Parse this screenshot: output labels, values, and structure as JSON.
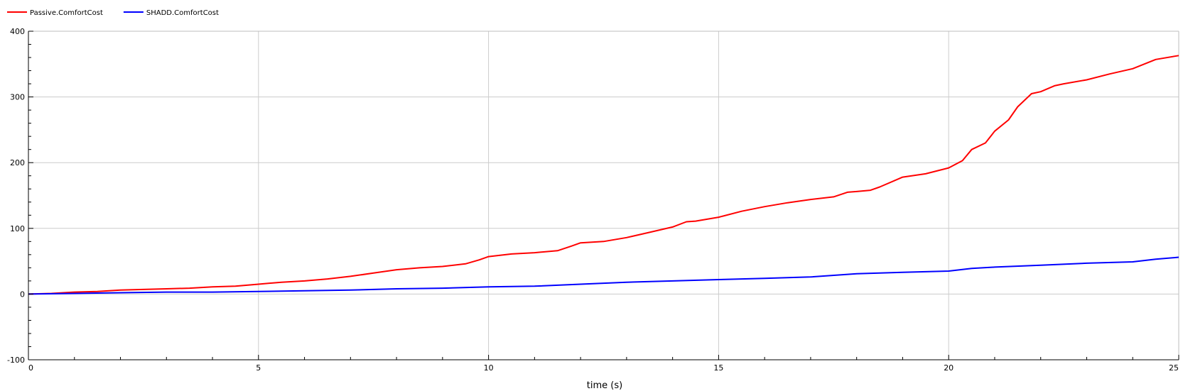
{
  "chart_data": {
    "type": "line",
    "title": "",
    "xlabel": "time (s)",
    "ylabel": "",
    "xlim": [
      0,
      25
    ],
    "ylim": [
      -100,
      400
    ],
    "x_ticks": [
      0,
      5,
      10,
      15,
      20,
      25
    ],
    "y_ticks": [
      -100,
      0,
      100,
      200,
      300,
      400
    ],
    "x_minor_step": 1,
    "y_minor_step": 20,
    "grid": true,
    "legend_position": "top-left",
    "series": [
      {
        "name": "Passive.ComfortCost",
        "color": "#ff0000",
        "points": [
          [
            0,
            0
          ],
          [
            0.5,
            1
          ],
          [
            1,
            3
          ],
          [
            1.5,
            4
          ],
          [
            2,
            6
          ],
          [
            2.5,
            7
          ],
          [
            3,
            8
          ],
          [
            3.5,
            9
          ],
          [
            4,
            11
          ],
          [
            4.5,
            12
          ],
          [
            5,
            15
          ],
          [
            5.5,
            18
          ],
          [
            6,
            20
          ],
          [
            6.5,
            23
          ],
          [
            7,
            27
          ],
          [
            7.5,
            32
          ],
          [
            8,
            37
          ],
          [
            8.5,
            40
          ],
          [
            9,
            42
          ],
          [
            9.5,
            46
          ],
          [
            9.8,
            52
          ],
          [
            10,
            57
          ],
          [
            10.5,
            61
          ],
          [
            11,
            63
          ],
          [
            11.5,
            66
          ],
          [
            11.8,
            73
          ],
          [
            12,
            78
          ],
          [
            12.5,
            80
          ],
          [
            13,
            86
          ],
          [
            13.5,
            94
          ],
          [
            14,
            102
          ],
          [
            14.3,
            110
          ],
          [
            14.5,
            111
          ],
          [
            15,
            117
          ],
          [
            15.5,
            126
          ],
          [
            16,
            133
          ],
          [
            16.5,
            139
          ],
          [
            17,
            144
          ],
          [
            17.5,
            148
          ],
          [
            17.8,
            155
          ],
          [
            18,
            156
          ],
          [
            18.3,
            158
          ],
          [
            18.5,
            163
          ],
          [
            19,
            178
          ],
          [
            19.5,
            183
          ],
          [
            20,
            192
          ],
          [
            20.3,
            203
          ],
          [
            20.5,
            220
          ],
          [
            20.8,
            230
          ],
          [
            21,
            248
          ],
          [
            21.3,
            265
          ],
          [
            21.5,
            285
          ],
          [
            21.8,
            305
          ],
          [
            22,
            308
          ],
          [
            22.3,
            317
          ],
          [
            22.5,
            320
          ],
          [
            23,
            326
          ],
          [
            23.5,
            335
          ],
          [
            24,
            343
          ],
          [
            24.5,
            357
          ],
          [
            25,
            363
          ]
        ]
      },
      {
        "name": "SHADD.ComfortCost",
        "color": "#0000ff",
        "points": [
          [
            0,
            0
          ],
          [
            1,
            1
          ],
          [
            2,
            2
          ],
          [
            3,
            3
          ],
          [
            4,
            3
          ],
          [
            5,
            4
          ],
          [
            6,
            5
          ],
          [
            7,
            6
          ],
          [
            8,
            8
          ],
          [
            9,
            9
          ],
          [
            10,
            11
          ],
          [
            11,
            12
          ],
          [
            12,
            15
          ],
          [
            13,
            18
          ],
          [
            14,
            20
          ],
          [
            15,
            22
          ],
          [
            16,
            24
          ],
          [
            17,
            26
          ],
          [
            18,
            31
          ],
          [
            19,
            33
          ],
          [
            20,
            35
          ],
          [
            20.5,
            39
          ],
          [
            21,
            41
          ],
          [
            22,
            44
          ],
          [
            23,
            47
          ],
          [
            24,
            49
          ],
          [
            24.5,
            53
          ],
          [
            25,
            56
          ]
        ]
      }
    ]
  }
}
